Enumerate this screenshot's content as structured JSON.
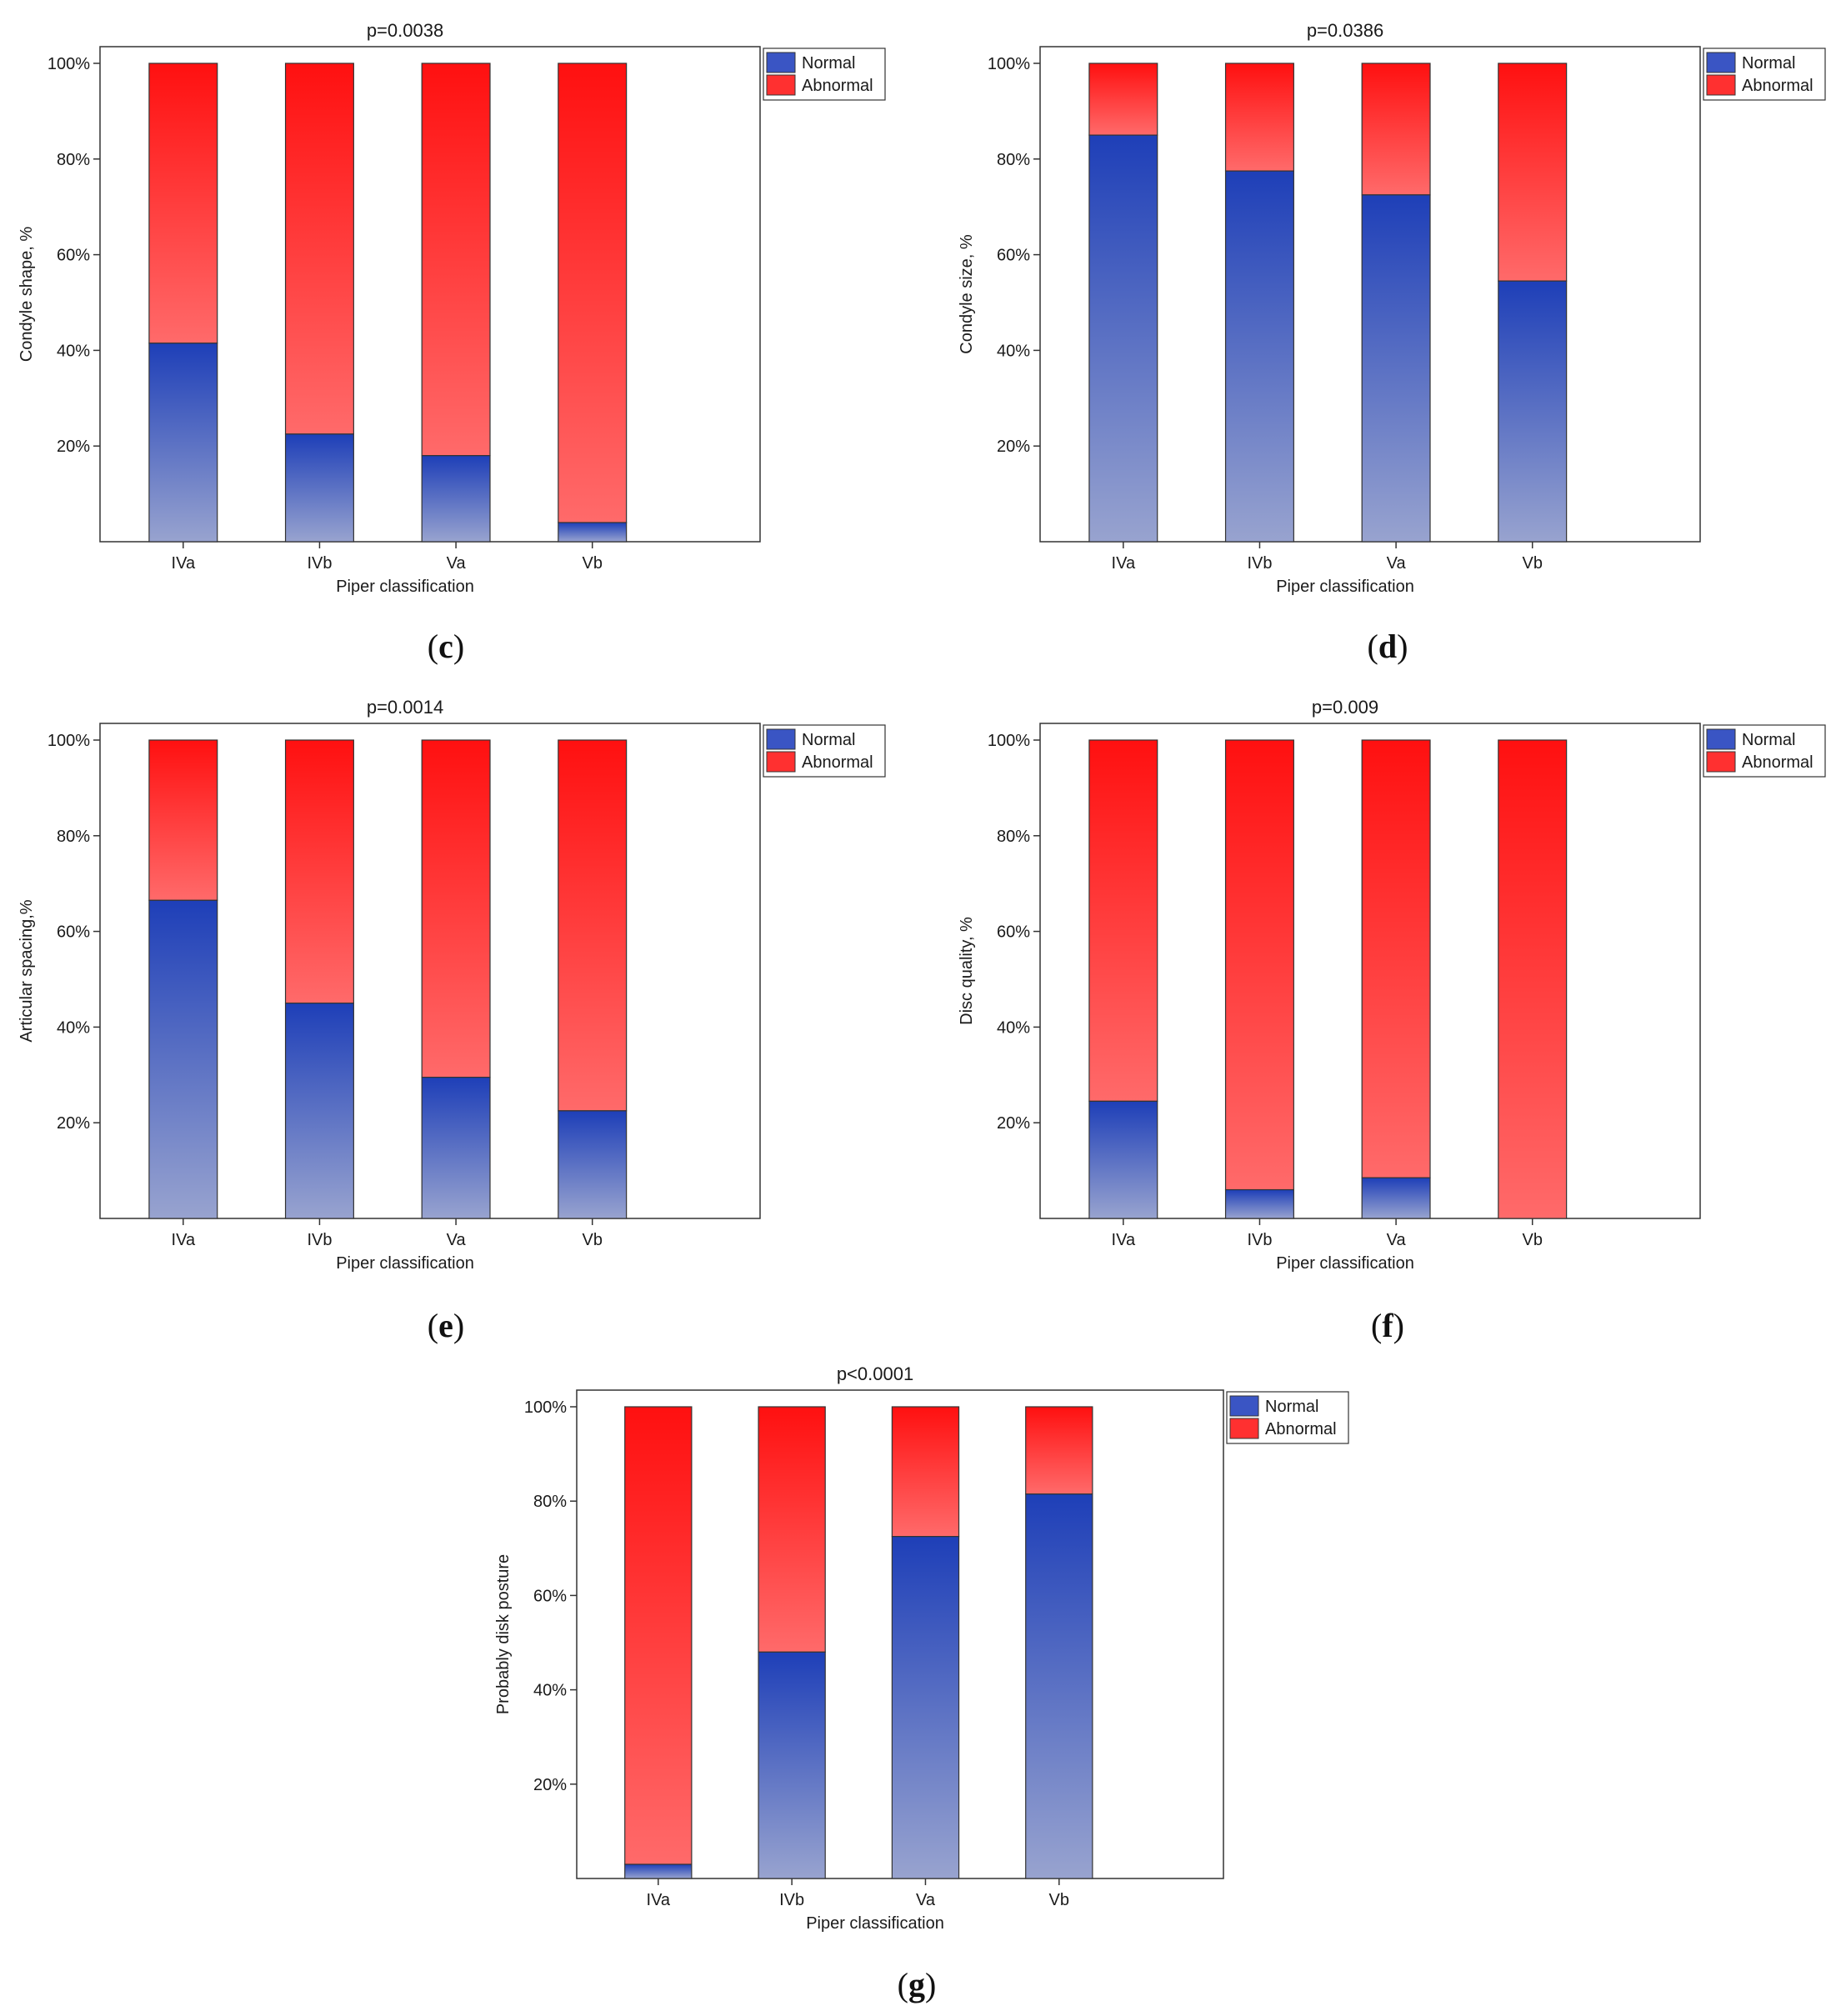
{
  "figure": {
    "background": "#ffffff"
  },
  "colors": {
    "normal_dark": "#1e3fb8",
    "normal_light": "#98a3cf",
    "abnormal_dark": "#ff1010",
    "abnormal_light": "#ff6a6a",
    "normal_legend": "#3a55c4",
    "abnormal_legend": "#ff3030",
    "frame": "#333333"
  },
  "chart_data": [
    {
      "id": "c",
      "caption_label": "c",
      "type": "bar",
      "stacked": true,
      "title": "p=0.0038",
      "xlabel": "Piper classification",
      "ylabel": "Condyle shape, %",
      "categories": [
        "IVa",
        "IVb",
        "Va",
        "Vb"
      ],
      "series": [
        {
          "name": "Normal",
          "values": [
            41.5,
            22.5,
            18,
            4
          ]
        },
        {
          "name": "Abnormal",
          "values": [
            58.5,
            77.5,
            82,
            96
          ]
        }
      ],
      "yticks": [
        20,
        40,
        60,
        80,
        100
      ],
      "ytick_labels": [
        "20%",
        "40%",
        "60%",
        "80%",
        "100%"
      ],
      "ylim": [
        0,
        100
      ],
      "legend": [
        "Normal",
        "Abnormal"
      ],
      "legend_position": "top-right"
    },
    {
      "id": "d",
      "caption_label": "d",
      "type": "bar",
      "stacked": true,
      "title": "p=0.0386",
      "xlabel": "Piper classification",
      "ylabel": "Condyle size, %",
      "categories": [
        "IVa",
        "IVb",
        "Va",
        "Vb"
      ],
      "series": [
        {
          "name": "Normal",
          "values": [
            85,
            77.5,
            72.5,
            54.5
          ]
        },
        {
          "name": "Abnormal",
          "values": [
            15,
            22.5,
            27.5,
            45.5
          ]
        }
      ],
      "yticks": [
        20,
        40,
        60,
        80,
        100
      ],
      "ytick_labels": [
        "20%",
        "40%",
        "60%",
        "80%",
        "100%"
      ],
      "ylim": [
        0,
        100
      ],
      "legend": [
        "Normal",
        "Abnormal"
      ],
      "legend_position": "top-right"
    },
    {
      "id": "e",
      "caption_label": "e",
      "type": "bar",
      "stacked": true,
      "title": "p=0.0014",
      "xlabel": "Piper classification",
      "ylabel": "Articular spacing,%",
      "categories": [
        "IVa",
        "IVb",
        "Va",
        "Vb"
      ],
      "series": [
        {
          "name": "Normal",
          "values": [
            66.5,
            45,
            29.5,
            22.5
          ]
        },
        {
          "name": "Abnormal",
          "values": [
            33.5,
            55,
            70.5,
            77.5
          ]
        }
      ],
      "yticks": [
        20,
        40,
        60,
        80,
        100
      ],
      "ytick_labels": [
        "20%",
        "40%",
        "60%",
        "80%",
        "100%"
      ],
      "ylim": [
        0,
        100
      ],
      "legend": [
        "Normal",
        "Abnormal"
      ],
      "legend_position": "top-right"
    },
    {
      "id": "f",
      "caption_label": "f",
      "type": "bar",
      "stacked": true,
      "title": "p=0.009",
      "xlabel": "Piper classification",
      "ylabel": "Disc quality, %",
      "categories": [
        "IVa",
        "IVb",
        "Va",
        "Vb"
      ],
      "series": [
        {
          "name": "Normal",
          "values": [
            24.5,
            6,
            8.5,
            0
          ]
        },
        {
          "name": "Abnormal",
          "values": [
            75.5,
            94,
            91.5,
            100
          ]
        }
      ],
      "yticks": [
        20,
        40,
        60,
        80,
        100
      ],
      "ytick_labels": [
        "20%",
        "40%",
        "60%",
        "80%",
        "100%"
      ],
      "ylim": [
        0,
        100
      ],
      "legend": [
        "Normal",
        "Abnormal"
      ],
      "legend_position": "top-right"
    },
    {
      "id": "g",
      "caption_label": "g",
      "type": "bar",
      "stacked": true,
      "title": "p<0.0001",
      "xlabel": "Piper classification",
      "ylabel": "Probably disk posture",
      "categories": [
        "IVa",
        "IVb",
        "Va",
        "Vb"
      ],
      "series": [
        {
          "name": "Normal",
          "values": [
            3,
            48,
            72.5,
            81.5
          ]
        },
        {
          "name": "Abnormal",
          "values": [
            97,
            52,
            27.5,
            18.5
          ]
        }
      ],
      "yticks": [
        20,
        40,
        60,
        80,
        100
      ],
      "ytick_labels": [
        "20%",
        "40%",
        "60%",
        "80%",
        "100%"
      ],
      "ylim": [
        0,
        100
      ],
      "legend": [
        "Normal",
        "Abnormal"
      ],
      "legend_position": "top-right"
    }
  ]
}
